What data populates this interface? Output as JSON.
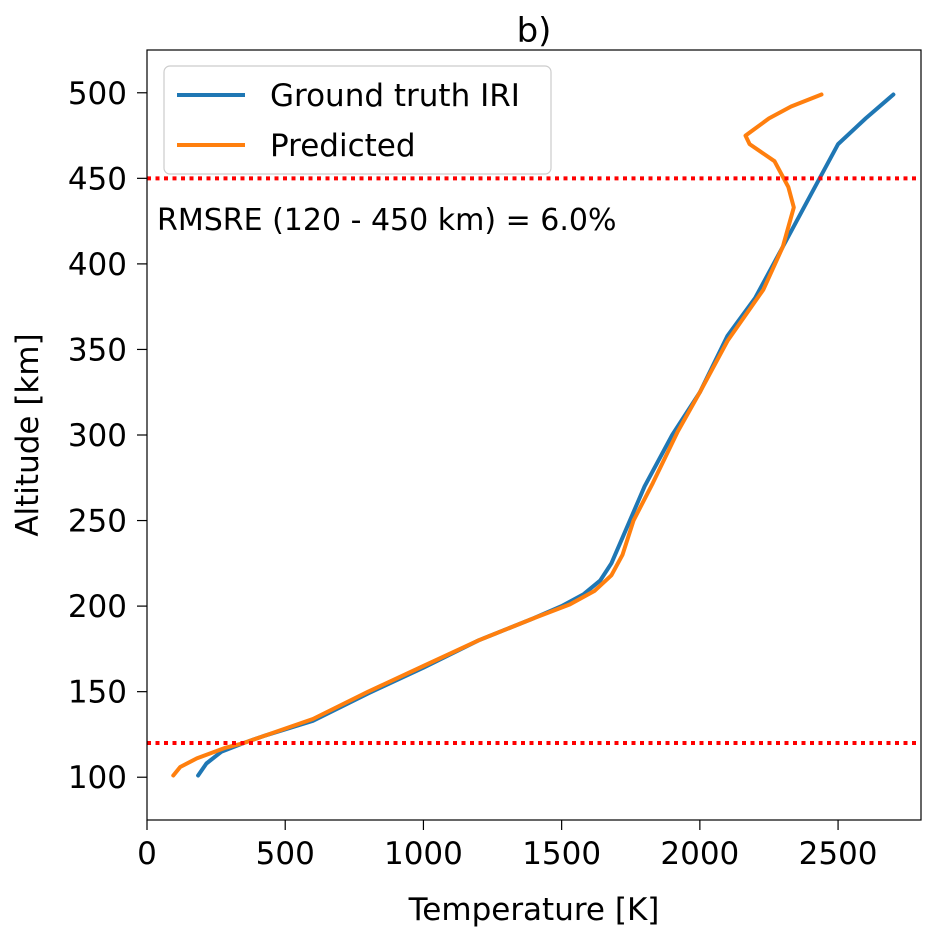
{
  "chart_data": {
    "type": "line",
    "title": "b)",
    "xlabel": "Temperature [K]",
    "ylabel": "Altitude [km]",
    "xlim": [
      0,
      2800
    ],
    "ylim": [
      75,
      525
    ],
    "xticks": [
      0,
      500,
      1000,
      1500,
      2000,
      2500
    ],
    "yticks": [
      100,
      150,
      200,
      250,
      300,
      350,
      400,
      450,
      500
    ],
    "xtick_labels": [
      "0",
      "500",
      "1000",
      "1500",
      "2000",
      "2500"
    ],
    "ytick_labels": [
      "100",
      "150",
      "200",
      "250",
      "300",
      "350",
      "400",
      "450",
      "500"
    ],
    "grid": false,
    "legend_position": "top-left",
    "annotation": "RMSRE (120 - 450 km) = 6.0%",
    "hlines": [
      {
        "y": 450,
        "color": "#ff0000",
        "style": "dotted"
      },
      {
        "y": 120,
        "color": "#ff0000",
        "style": "dotted"
      }
    ],
    "series": [
      {
        "name": "Ground truth IRI",
        "color": "#1f77b4",
        "points": [
          [
            185,
            101
          ],
          [
            215,
            108
          ],
          [
            270,
            115
          ],
          [
            350,
            120
          ],
          [
            420,
            124
          ],
          [
            600,
            133
          ],
          [
            800,
            149
          ],
          [
            1000,
            164
          ],
          [
            1200,
            180
          ],
          [
            1400,
            193
          ],
          [
            1500,
            200
          ],
          [
            1580,
            207
          ],
          [
            1640,
            215
          ],
          [
            1680,
            225
          ],
          [
            1720,
            240
          ],
          [
            1800,
            270
          ],
          [
            1900,
            300
          ],
          [
            2000,
            325
          ],
          [
            2100,
            358
          ],
          [
            2200,
            380
          ],
          [
            2300,
            410
          ],
          [
            2400,
            440
          ],
          [
            2500,
            470
          ],
          [
            2600,
            485
          ],
          [
            2700,
            499
          ]
        ]
      },
      {
        "name": "Predicted",
        "color": "#ff7f0e",
        "points": [
          [
            95,
            101
          ],
          [
            120,
            106
          ],
          [
            180,
            111
          ],
          [
            280,
            117
          ],
          [
            350,
            120
          ],
          [
            420,
            124
          ],
          [
            600,
            134
          ],
          [
            800,
            150
          ],
          [
            1000,
            165
          ],
          [
            1200,
            180
          ],
          [
            1400,
            193
          ],
          [
            1530,
            201
          ],
          [
            1620,
            209
          ],
          [
            1680,
            218
          ],
          [
            1720,
            230
          ],
          [
            1760,
            250
          ],
          [
            1830,
            272
          ],
          [
            1920,
            302
          ],
          [
            2000,
            325
          ],
          [
            2100,
            355
          ],
          [
            2230,
            385
          ],
          [
            2300,
            410
          ],
          [
            2340,
            433
          ],
          [
            2320,
            445
          ],
          [
            2270,
            460
          ],
          [
            2180,
            470
          ],
          [
            2165,
            475
          ],
          [
            2250,
            485
          ],
          [
            2330,
            492
          ],
          [
            2440,
            499
          ]
        ]
      }
    ]
  }
}
